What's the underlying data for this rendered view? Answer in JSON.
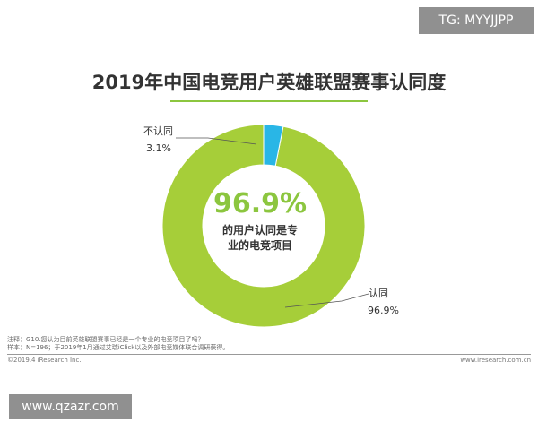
{
  "watermark_top": "TG: MYYJJPP",
  "watermark_bottom": "www.qzazr.com",
  "chart_data": {
    "type": "pie",
    "title": "2019年中国电竞用户英雄联盟赛事认同度",
    "donut": true,
    "center_value": "96.9%",
    "center_text": [
      "的用户认同是专",
      "业的电竞项目"
    ],
    "slices": [
      {
        "label": "认同",
        "value": 96.9,
        "value_label": "96.9%",
        "color": "#a6ce39"
      },
      {
        "label": "不认同",
        "value": 3.1,
        "value_label": "3.1%",
        "color": "#29b6e6"
      }
    ]
  },
  "notes": {
    "line1": "注释：G10.您认为目前英雄联盟赛事已经是一个专业的电竞项目了吗？",
    "line2": "样本：N=196；于2019年1月通过艾瑞iClick以及外部电竞媒体联合调研获得。"
  },
  "footer": {
    "left": "©2019.4 iResearch Inc.",
    "right": "www.iresearch.com.cn"
  }
}
